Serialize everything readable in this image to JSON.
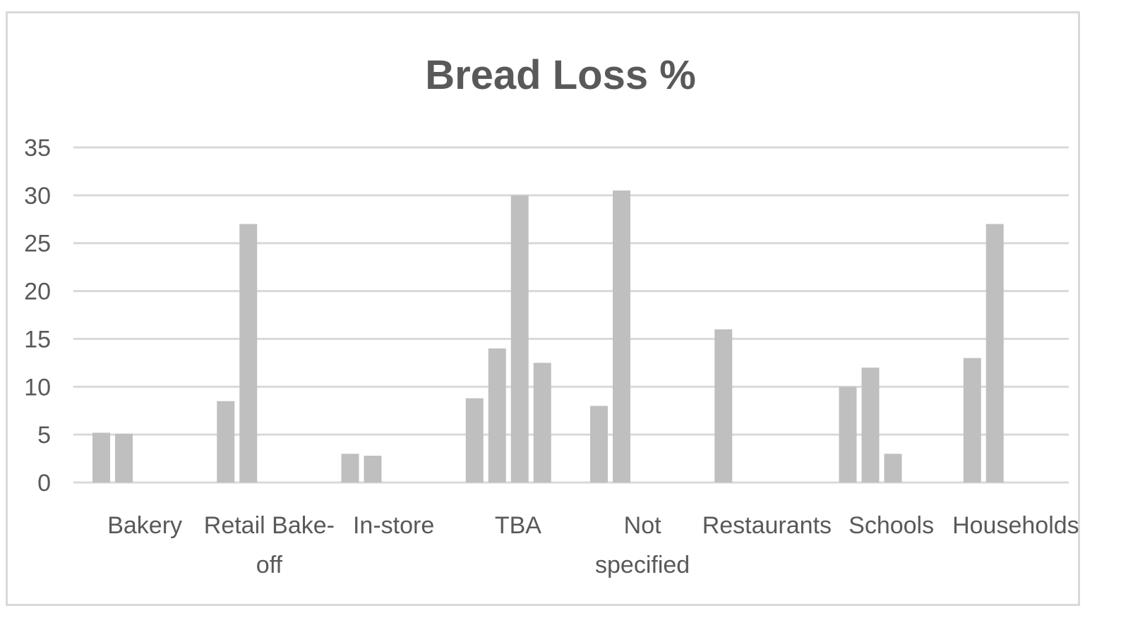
{
  "chart_data": {
    "type": "bar",
    "title": "Bread Loss %",
    "xlabel": "",
    "ylabel": "",
    "ylim": [
      0,
      35
    ],
    "yticks": [
      0,
      5,
      10,
      15,
      20,
      25,
      30,
      35
    ],
    "grid": true,
    "legend": "none",
    "bar_color": "#bfbfbf",
    "categories": [
      {
        "label_lines": [
          "Bakery"
        ],
        "values": [
          5.2,
          5.1
        ]
      },
      {
        "label_lines": [
          "Retail Bake-",
          "off"
        ],
        "values": [
          8.5,
          27
        ]
      },
      {
        "label_lines": [
          "In-store"
        ],
        "values": [
          3.0,
          2.8
        ]
      },
      {
        "label_lines": [
          "TBA"
        ],
        "values": [
          8.8,
          14,
          30,
          12.5
        ]
      },
      {
        "label_lines": [
          "Not",
          "specified"
        ],
        "values": [
          8.0,
          30.5
        ]
      },
      {
        "label_lines": [
          "Restaurants"
        ],
        "values": [
          16
        ]
      },
      {
        "label_lines": [
          "Schools"
        ],
        "values": [
          10,
          12,
          3.0
        ]
      },
      {
        "label_lines": [
          "Households"
        ],
        "values": [
          13,
          27
        ]
      }
    ]
  }
}
